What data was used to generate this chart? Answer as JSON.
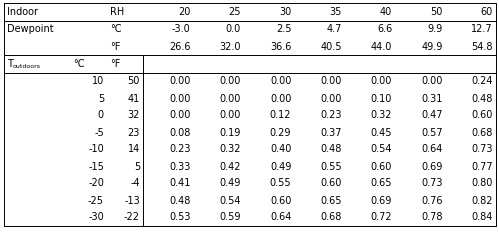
{
  "rh_vals": [
    "20",
    "25",
    "30",
    "35",
    "40",
    "50",
    "60"
  ],
  "dewpoint_c": [
    "-3.0",
    "0.0",
    "2.5",
    "4.7",
    "6.6",
    "9.9",
    "12.7"
  ],
  "dewpoint_f": [
    "26.6",
    "32.0",
    "36.6",
    "40.5",
    "44.0",
    "49.9",
    "54.8"
  ],
  "data_rows": [
    [
      "10",
      "50",
      "0.00",
      "0.00",
      "0.00",
      "0.00",
      "0.00",
      "0.00",
      "0.24"
    ],
    [
      "5",
      "41",
      "0.00",
      "0.00",
      "0.00",
      "0.00",
      "0.10",
      "0.31",
      "0.48"
    ],
    [
      "0",
      "32",
      "0.00",
      "0.00",
      "0.12",
      "0.23",
      "0.32",
      "0.47",
      "0.60"
    ],
    [
      "-5",
      "23",
      "0.08",
      "0.19",
      "0.29",
      "0.37",
      "0.45",
      "0.57",
      "0.68"
    ],
    [
      "-10",
      "14",
      "0.23",
      "0.32",
      "0.40",
      "0.48",
      "0.54",
      "0.64",
      "0.73"
    ],
    [
      "-15",
      "5",
      "0.33",
      "0.42",
      "0.49",
      "0.55",
      "0.60",
      "0.69",
      "0.77"
    ],
    [
      "-20",
      "-4",
      "0.41",
      "0.49",
      "0.55",
      "0.60",
      "0.65",
      "0.73",
      "0.80"
    ],
    [
      "-25",
      "-13",
      "0.48",
      "0.54",
      "0.60",
      "0.65",
      "0.69",
      "0.76",
      "0.82"
    ],
    [
      "-30",
      "-22",
      "0.53",
      "0.59",
      "0.64",
      "0.68",
      "0.72",
      "0.78",
      "0.84"
    ]
  ],
  "bg_color": "#ffffff",
  "font_size": 7.0,
  "sub_font_size": 4.5,
  "line_color": "#000000",
  "line_width": 0.7
}
